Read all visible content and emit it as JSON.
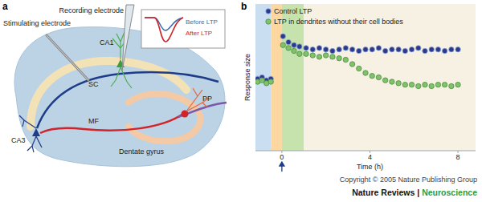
{
  "panels": [
    "a",
    "b"
  ],
  "diagram": {
    "stimulating_electrode": "Stimulating electrode",
    "recording_electrode": "Recording electrode",
    "inset": {
      "before": "Before LTP",
      "after": "After LTP"
    },
    "regions": [
      "CA1",
      "SC",
      "CA3",
      "MF",
      "Dentate gyrus",
      "PP"
    ]
  },
  "chart_data": {
    "type": "scatter",
    "x_label": "Time (h)",
    "y_label": "Response size",
    "x": [
      -1.1,
      -0.9,
      -0.7,
      -0.5,
      0.05,
      0.3,
      0.55,
      0.8,
      1.1,
      1.4,
      1.7,
      2.0,
      2.3,
      2.6,
      2.9,
      3.2,
      3.5,
      3.8,
      4.1,
      4.4,
      4.7,
      5.0,
      5.3,
      5.6,
      5.9,
      6.2,
      6.5,
      6.8,
      7.1,
      7.4,
      7.7,
      8.0
    ],
    "series": [
      {
        "name": "Control LTP",
        "color": "#2a3a8f",
        "marker": "circle",
        "values": [
          4.3,
          4.4,
          4.2,
          4.3,
          7.2,
          6.8,
          6.6,
          6.5,
          6.4,
          6.3,
          6.4,
          6.3,
          6.2,
          6.3,
          6.4,
          6.3,
          6.2,
          6.3,
          6.3,
          6.4,
          6.2,
          6.3,
          6.3,
          6.2,
          6.3,
          6.4,
          6.2,
          6.3,
          6.3,
          6.2,
          6.3,
          6.3
        ]
      },
      {
        "name": "LTP in dendrites without their cell bodies",
        "color": "#7fc26b",
        "marker": "circle",
        "values": [
          4.1,
          4.2,
          4.0,
          4.1,
          6.6,
          6.4,
          6.2,
          6.0,
          6.0,
          5.9,
          5.8,
          5.9,
          5.8,
          5.7,
          5.6,
          5.3,
          5.0,
          4.7,
          4.5,
          4.4,
          4.2,
          4.1,
          4.0,
          3.9,
          3.9,
          3.8,
          3.9,
          3.8,
          3.9,
          3.9,
          3.8,
          3.9
        ]
      }
    ],
    "xlim": [
      -1.2,
      8.8
    ],
    "xticks": [
      0,
      4,
      8
    ],
    "ylim": [
      -0.6,
      9.4
    ],
    "yticks": [],
    "tick_labels": "x",
    "legend": "top",
    "grid": false,
    "stimulus": 0,
    "bands": [
      {
        "start": -1.2,
        "end": -0.5,
        "color": "#c9def0"
      },
      {
        "start": -0.5,
        "end": 0,
        "color": "#fcd7a0"
      },
      {
        "start": 0,
        "end": 1,
        "color": "#c6e3ad"
      },
      {
        "start": 1,
        "end": 8.8,
        "color": "#f6f1e3"
      }
    ]
  },
  "footer": {
    "copyright": "Copyright © 2005 Nature Publishing Group",
    "journal": "Nature Reviews |",
    "section": "Neuroscience"
  }
}
